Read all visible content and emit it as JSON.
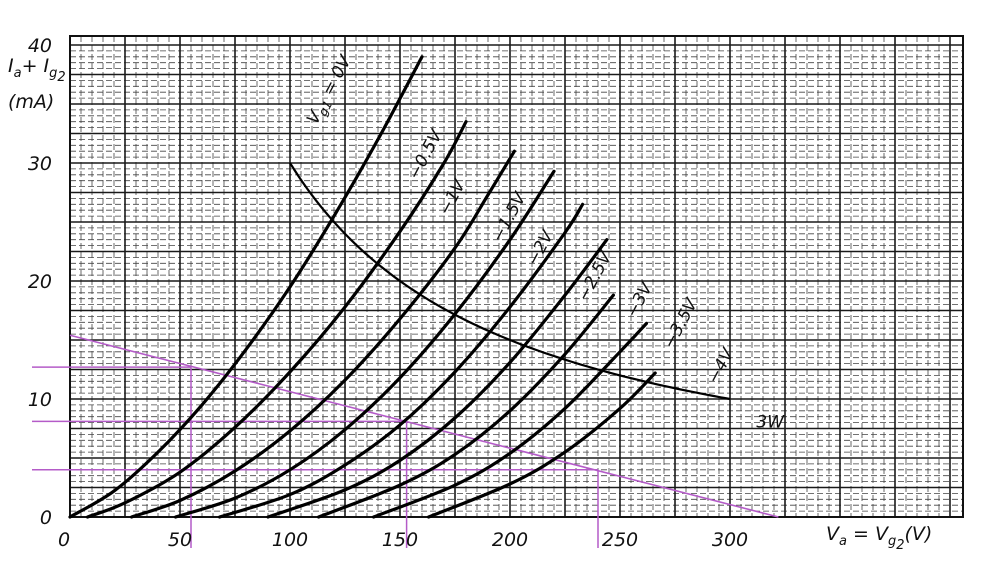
{
  "chart_data": {
    "type": "line",
    "title": "",
    "xlabel": {
      "main": "V",
      "sub1": "a",
      "mid": " = V",
      "sub2": "g",
      "sub3": "2",
      "tail": "(V)"
    },
    "ylabel": {
      "line1_a": "I",
      "line1_b": "a",
      "line1_c": "+ I",
      "line1_d": "g",
      "line1_e": "2",
      "line2": "(mA)"
    },
    "xlim": [
      0,
      400
    ],
    "ylim": [
      0,
      40
    ],
    "grid": true,
    "x_ticks": [
      "0",
      "50",
      "100",
      "150",
      "200",
      "250",
      "300"
    ],
    "x_tick_values": [
      0,
      50,
      100,
      150,
      200,
      250,
      300
    ],
    "y_ticks": [
      "0",
      "10",
      "20",
      "30",
      "40"
    ],
    "y_tick_values": [
      0,
      10,
      20,
      30,
      40
    ],
    "series": [
      {
        "name": "Vg1 = 0V",
        "label": "V",
        "label_sub": "g1",
        "label_tail": " = 0V",
        "points": [
          [
            0,
            0
          ],
          [
            20,
            2.2
          ],
          [
            40,
            5.5
          ],
          [
            60,
            9.5
          ],
          [
            80,
            14.2
          ],
          [
            100,
            19.5
          ],
          [
            120,
            25.5
          ],
          [
            140,
            32
          ],
          [
            160,
            39
          ]
        ],
        "label_at": [
          112,
          33.2
        ]
      },
      {
        "name": "-0.5V",
        "label": "−0.5V",
        "points": [
          [
            8,
            0
          ],
          [
            25,
            1.2
          ],
          [
            50,
            3.8
          ],
          [
            75,
            7.6
          ],
          [
            100,
            12.3
          ],
          [
            125,
            17.8
          ],
          [
            150,
            24.2
          ],
          [
            170,
            30
          ],
          [
            180,
            33.5
          ]
        ],
        "label_at": [
          158,
          28.5
        ]
      },
      {
        "name": "-1V",
        "label": "−1V",
        "points": [
          [
            28,
            0
          ],
          [
            50,
            1.4
          ],
          [
            75,
            3.9
          ],
          [
            100,
            7.3
          ],
          [
            125,
            11.6
          ],
          [
            150,
            16.8
          ],
          [
            175,
            22.8
          ],
          [
            190,
            27.3
          ],
          [
            202,
            31
          ]
        ],
        "label_at": [
          172,
          25.5
        ]
      },
      {
        "name": "-1.5V",
        "label": "−1.5V",
        "points": [
          [
            48,
            0
          ],
          [
            75,
            1.6
          ],
          [
            100,
            4
          ],
          [
            125,
            7.4
          ],
          [
            150,
            11.8
          ],
          [
            175,
            17.2
          ],
          [
            200,
            23.5
          ],
          [
            220,
            29.3
          ]
        ],
        "label_at": [
          196,
          23.2
        ]
      },
      {
        "name": "-2V",
        "label": "−2V",
        "points": [
          [
            68,
            0
          ],
          [
            100,
            1.9
          ],
          [
            125,
            4.4
          ],
          [
            150,
            7.8
          ],
          [
            175,
            12.3
          ],
          [
            200,
            17.8
          ],
          [
            225,
            24.1
          ],
          [
            233,
            26.5
          ]
        ],
        "label_at": [
          212,
          21.2
        ]
      },
      {
        "name": "-2.5V",
        "label": "−2.5V",
        "points": [
          [
            90,
            0
          ],
          [
            125,
            2.3
          ],
          [
            150,
            4.8
          ],
          [
            175,
            8.4
          ],
          [
            200,
            13.1
          ],
          [
            225,
            18.8
          ],
          [
            244,
            23.5
          ]
        ],
        "label_at": [
          235,
          18.2
        ]
      },
      {
        "name": "-3V",
        "label": "−3V",
        "points": [
          [
            113,
            0
          ],
          [
            150,
            2.7
          ],
          [
            175,
            5.3
          ],
          [
            200,
            9
          ],
          [
            225,
            13.8
          ],
          [
            247,
            18.8
          ]
        ],
        "label_at": [
          257,
          16.8
        ]
      },
      {
        "name": "-3.5V",
        "label": "−3.5V",
        "points": [
          [
            138,
            0
          ],
          [
            175,
            2.7
          ],
          [
            200,
            5.4
          ],
          [
            225,
            9.2
          ],
          [
            250,
            14
          ],
          [
            262,
            16.4
          ]
        ],
        "label_at": [
          274,
          14.2
        ]
      },
      {
        "name": "-4V",
        "label": "−4V",
        "points": [
          [
            163,
            0
          ],
          [
            200,
            2.8
          ],
          [
            225,
            5.5
          ],
          [
            250,
            9.2
          ],
          [
            266,
            12.2
          ]
        ],
        "label_at": [
          294,
          11.2
        ]
      }
    ],
    "annotations": {
      "power_curve": {
        "label": "3W",
        "x_from": 100,
        "x_to": 300,
        "watts": 3,
        "label_at": [
          312,
          7.6
        ]
      },
      "load_line": {
        "color": "#b45bc8",
        "points": [
          [
            0,
            15.4
          ],
          [
            322,
            0
          ]
        ]
      },
      "operating_points": [
        {
          "x": 55,
          "y": 12.7
        },
        {
          "x": 153,
          "y": 8.1
        },
        {
          "x": 240,
          "y": 4
        }
      ]
    }
  }
}
